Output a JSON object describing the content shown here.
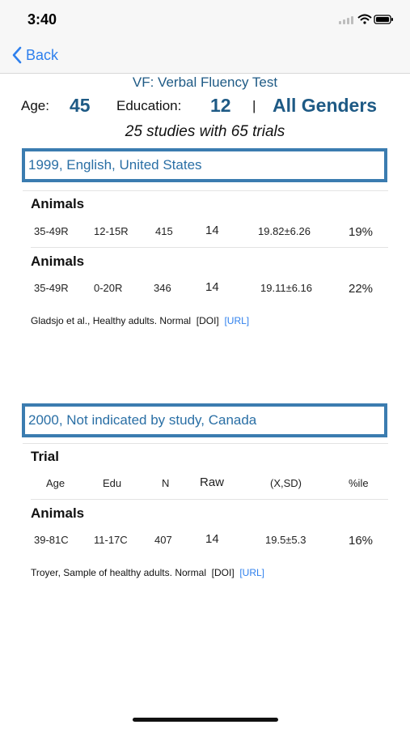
{
  "status": {
    "time": "3:40"
  },
  "nav": {
    "back_label": "Back"
  },
  "header": {
    "title": "VF: Verbal Fluency Test",
    "age_label": "Age:",
    "age_value": "45",
    "education_label": "Education:",
    "education_value": "12",
    "separator": "|",
    "gender_value": "All Genders",
    "summary": "25 studies with 65 trials"
  },
  "studies": [
    {
      "header": "1999, English, United States",
      "trials": [
        {
          "name": "Animals",
          "age": "35-49R",
          "edu": "12-15R",
          "n": "415",
          "raw": "14",
          "xsd": "19.82±6.26",
          "pct": "19%"
        },
        {
          "name": "Animals",
          "age": "35-49R",
          "edu": "0-20R",
          "n": "346",
          "raw": "14",
          "xsd": "19.11±6.16",
          "pct": "22%"
        }
      ],
      "citation": {
        "text": "Gladsjo et al., Healthy adults. Normal",
        "doi": "[DOI]",
        "url": "[URL]"
      }
    },
    {
      "header": "2000, Not indicated by study, Canada",
      "trial_header": {
        "label": "Trial",
        "age": "Age",
        "edu": "Edu",
        "n": "N",
        "raw": "Raw",
        "xsd": "(X,SD)",
        "pct": "%ile"
      },
      "trials": [
        {
          "name": "Animals",
          "age": "39-81C",
          "edu": "11-17C",
          "n": "407",
          "raw": "14",
          "xsd": "19.5±5.3",
          "pct": "16%"
        }
      ],
      "citation": {
        "text": "Troyer, Sample of healthy adults. Normal",
        "doi": "[DOI]",
        "url": "[URL]"
      }
    }
  ],
  "colors": {
    "accent": "#1e5a85",
    "link": "#2f80ed",
    "box": "#3b7cb0"
  }
}
